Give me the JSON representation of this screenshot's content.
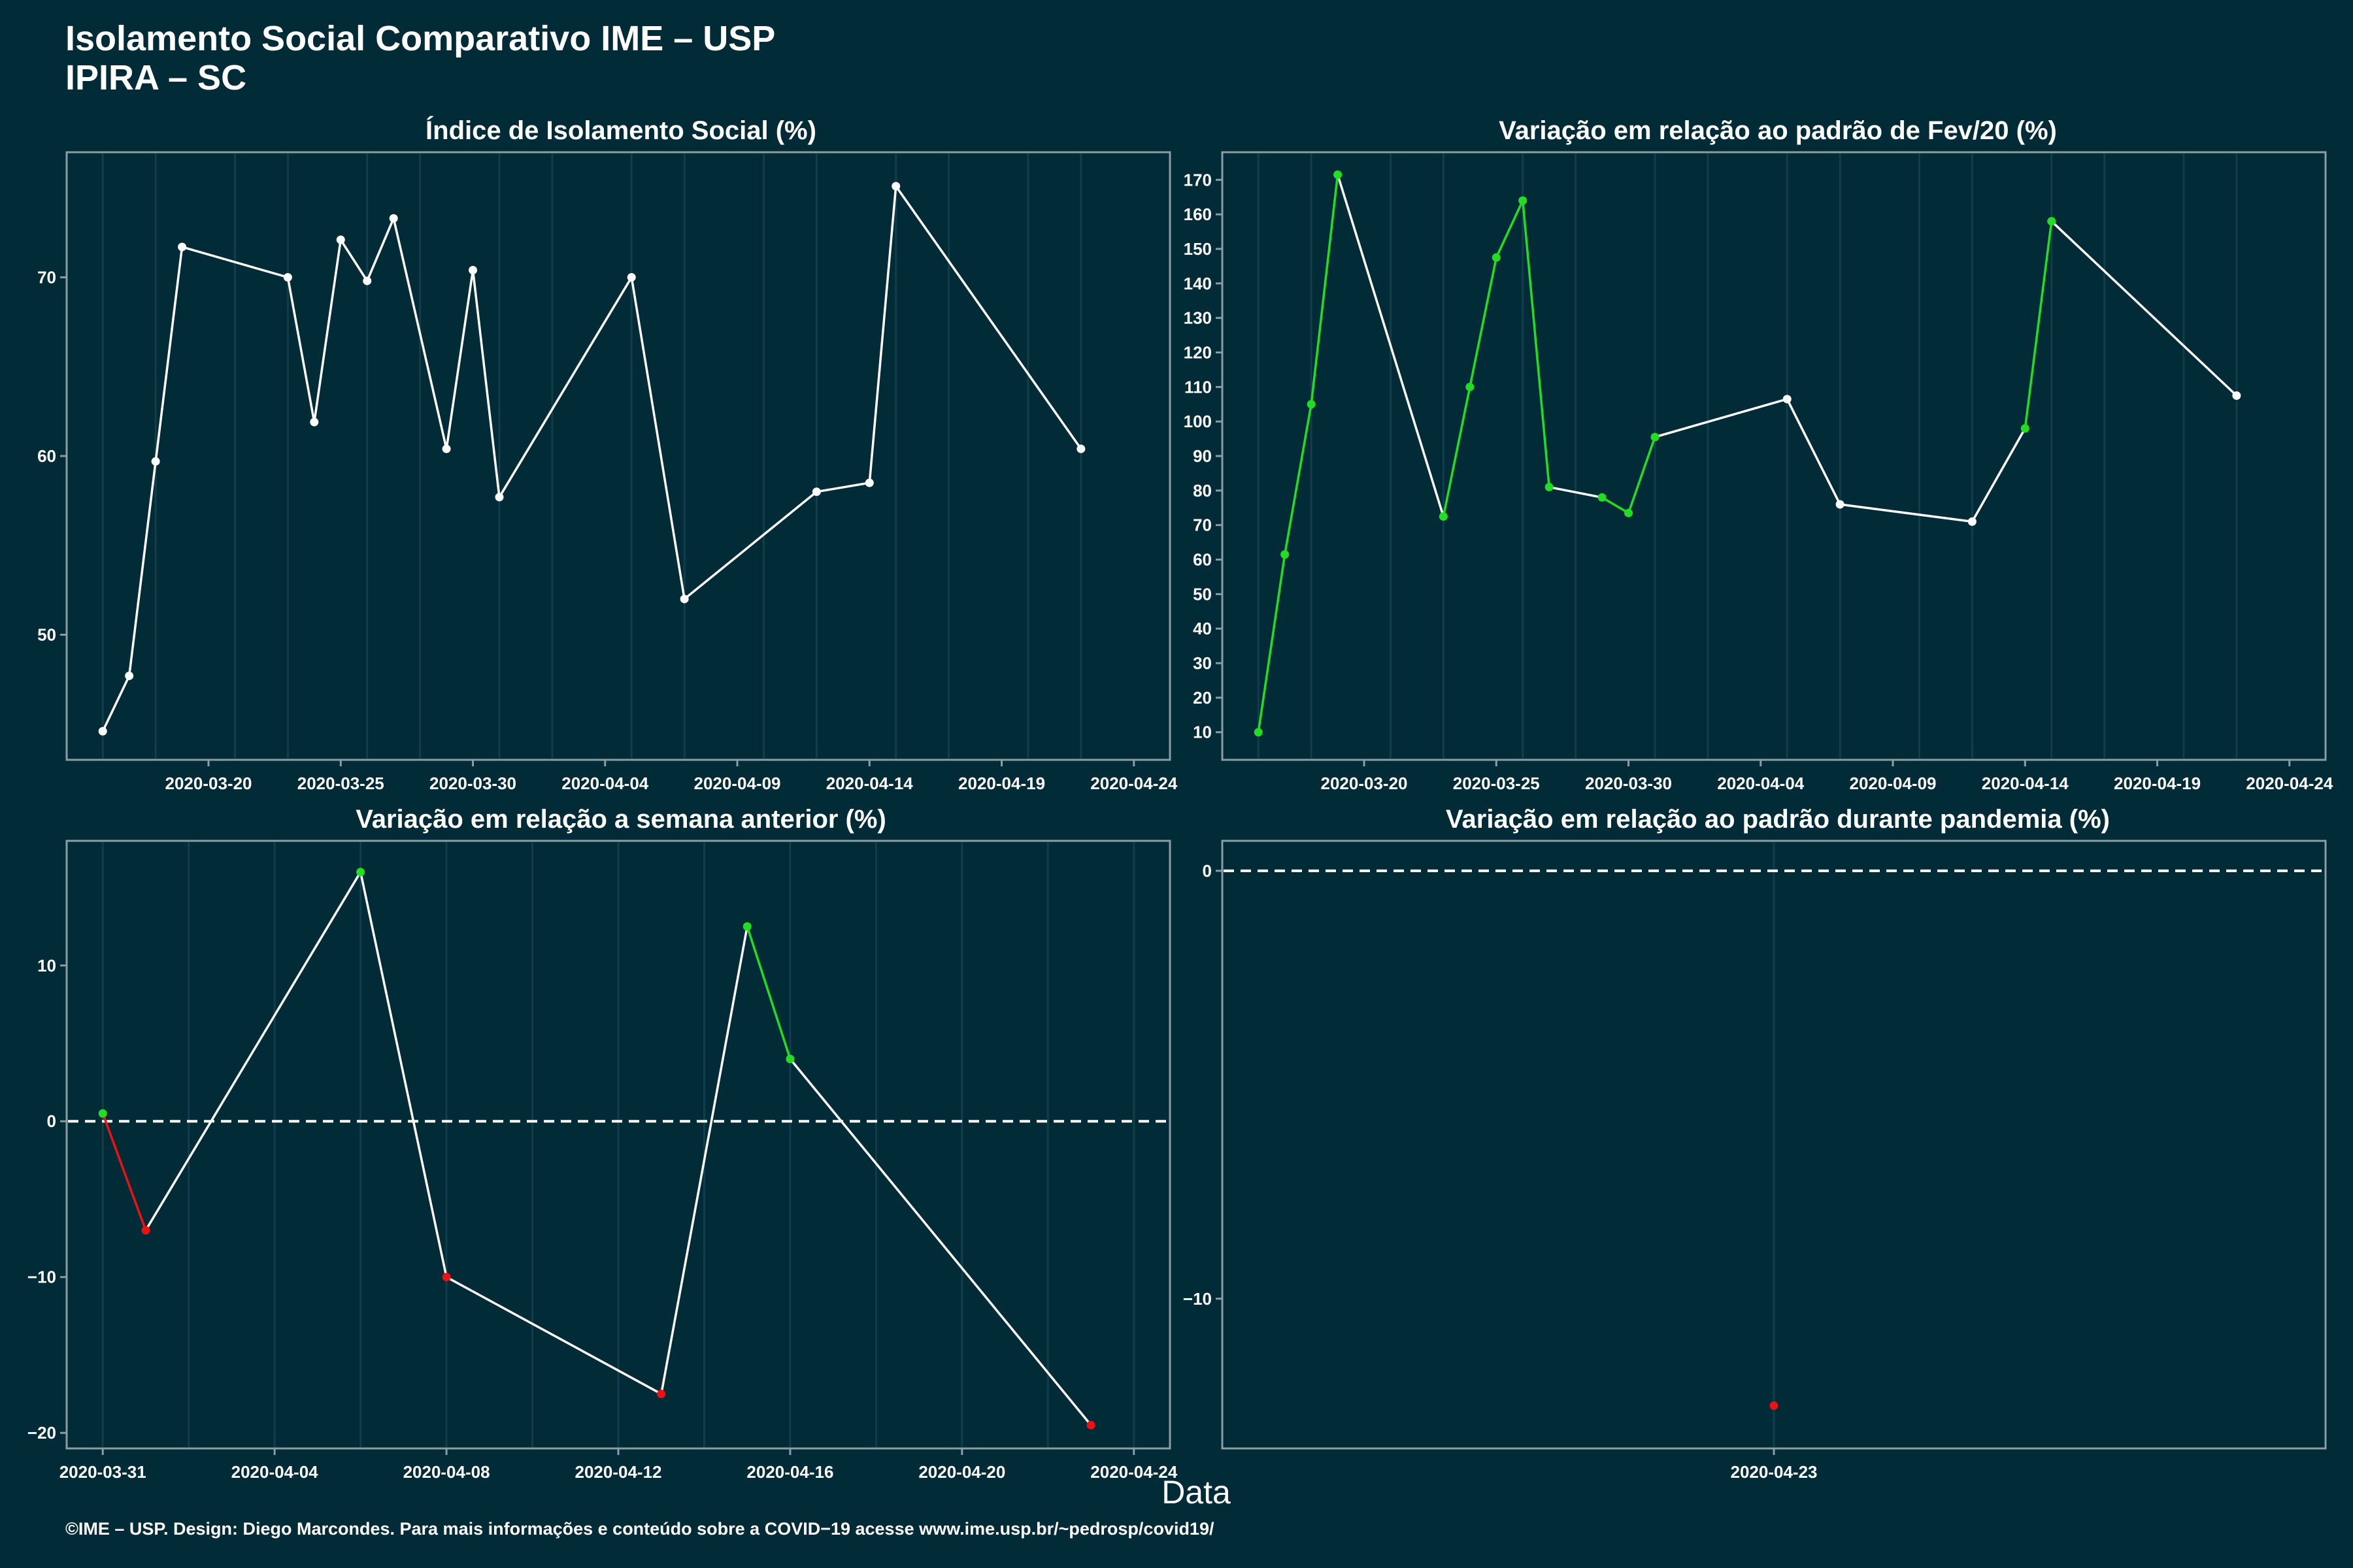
{
  "title_line1": "Isolamento Social Comparativo IME – USP",
  "title_line2": "IPIRA – SC",
  "xlabel": "Data",
  "footer": "©IME – USP. Design: Diego Marcondes. Para mais informações e conteúdo sobre a COVID−19 acesse www.ime.usp.br/~pedrosp/covid19/",
  "colors": {
    "background": "#022b38",
    "line": "#ffffff",
    "positive": "#22dd22",
    "negative": "#ee1111",
    "grid": "#123d4a",
    "axis": "#8a9ea4"
  },
  "chart_data": [
    {
      "type": "line",
      "title": "Índice de Isolamento Social (%)",
      "x": [
        "2020-03-16",
        "2020-03-17",
        "2020-03-18",
        "2020-03-19",
        "2020-03-23",
        "2020-03-24",
        "2020-03-25",
        "2020-03-26",
        "2020-03-27",
        "2020-03-29",
        "2020-03-30",
        "2020-03-31",
        "2020-04-05",
        "2020-04-07",
        "2020-04-12",
        "2020-04-14",
        "2020-04-15",
        "2020-04-22"
      ],
      "y": [
        44.6,
        47.7,
        59.7,
        71.7,
        70.0,
        61.9,
        72.1,
        69.8,
        73.3,
        60.4,
        70.4,
        57.7,
        70.0,
        52.0,
        58.0,
        58.5,
        75.1,
        60.4
      ],
      "xticks": [
        "2020-03-20",
        "2020-03-25",
        "2020-03-30",
        "2020-04-04",
        "2020-04-09",
        "2020-04-14",
        "2020-04-19",
        "2020-04-24"
      ],
      "yticks": [
        50,
        60,
        70
      ],
      "xlim": [
        "2020-03-16",
        "2020-04-24"
      ],
      "ylim": [
        43,
        77
      ],
      "grid": "vertical"
    },
    {
      "type": "line",
      "title": "Variação em relação ao padrão de Fev/20 (%)",
      "x": [
        "2020-03-16",
        "2020-03-17",
        "2020-03-18",
        "2020-03-19",
        "2020-03-23",
        "2020-03-24",
        "2020-03-25",
        "2020-03-26",
        "2020-03-27",
        "2020-03-29",
        "2020-03-30",
        "2020-03-31",
        "2020-04-05",
        "2020-04-07",
        "2020-04-12",
        "2020-04-14",
        "2020-04-15",
        "2020-04-22"
      ],
      "y": [
        10,
        61.5,
        105,
        171.5,
        72.5,
        110,
        147.5,
        164,
        81,
        78,
        73.5,
        95.5,
        106.5,
        76,
        71,
        98,
        158,
        107.5
      ],
      "segment_colors": [
        "positive",
        "positive",
        "positive",
        "line",
        "positive",
        "positive",
        "positive",
        "positive",
        "line",
        "positive",
        "positive",
        "line",
        "line",
        "line",
        "line",
        "positive",
        "line"
      ],
      "xticks": [
        "2020-03-20",
        "2020-03-25",
        "2020-03-30",
        "2020-04-04",
        "2020-04-09",
        "2020-04-14",
        "2020-04-19",
        "2020-04-24"
      ],
      "yticks": [
        10,
        20,
        30,
        40,
        50,
        60,
        70,
        80,
        90,
        100,
        110,
        120,
        130,
        140,
        150,
        160,
        170
      ],
      "xlim": [
        "2020-03-16",
        "2020-04-24"
      ],
      "ylim": [
        2,
        178
      ],
      "grid": "vertical"
    },
    {
      "type": "line",
      "title": "Variação em relação a semana anterior (%)",
      "x": [
        "2020-03-31",
        "2020-04-01",
        "2020-04-06",
        "2020-04-08",
        "2020-04-13",
        "2020-04-15",
        "2020-04-16",
        "2020-04-23"
      ],
      "y": [
        0.5,
        -7,
        16,
        -10,
        -17.5,
        12.5,
        4,
        -19.5
      ],
      "point_colors": [
        "positive",
        "negative",
        "positive",
        "negative",
        "negative",
        "positive",
        "positive",
        "negative"
      ],
      "segment_colors": [
        "negative",
        "line",
        "line",
        "line",
        "line",
        "positive",
        "line"
      ],
      "xticks": [
        "2020-03-31",
        "2020-04-04",
        "2020-04-08",
        "2020-04-12",
        "2020-04-16",
        "2020-04-20",
        "2020-04-24"
      ],
      "yticks": [
        -20,
        -10,
        0,
        10
      ],
      "reference_line": 0,
      "xlim": [
        "2020-03-31",
        "2020-04-24"
      ],
      "ylim": [
        -21,
        18
      ],
      "grid": "vertical"
    },
    {
      "type": "scatter",
      "title": "Variação em relação ao padrão durante pandemia (%)",
      "x": [
        "2020-04-23"
      ],
      "y": [
        -12.5
      ],
      "point_colors": [
        "negative"
      ],
      "xticks": [
        "2020-04-23"
      ],
      "yticks": [
        -10,
        0
      ],
      "reference_line": 0,
      "ylim": [
        -13.5,
        0.7
      ],
      "grid": "vertical"
    }
  ]
}
